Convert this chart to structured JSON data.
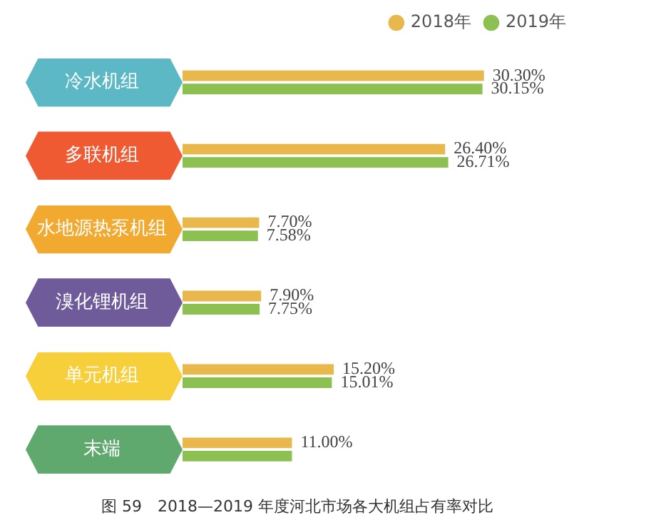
{
  "chart_data": {
    "type": "bar",
    "orientation": "horizontal",
    "title": "图 59　2018—2019 年度河北市场各大机组占有率对比",
    "categories": [
      "冷水机组",
      "多联机组",
      "水地源热泵机组",
      "溴化锂机组",
      "单元机组",
      "末端"
    ],
    "series": [
      {
        "name": "2018年",
        "color": "#e9b84c",
        "values": [
          30.3,
          26.4,
          7.7,
          7.9,
          15.2,
          11.0
        ],
        "value_labels": [
          "30.30%",
          "26.40%",
          "7.70%",
          "7.90%",
          "15.20%",
          "11.00%"
        ]
      },
      {
        "name": "2019年",
        "color": "#8cc152",
        "values": [
          30.15,
          26.71,
          7.58,
          7.75,
          15.01,
          11.0
        ],
        "value_labels": [
          "30.15%",
          "26.71%",
          "7.58%",
          "7.75%",
          "15.01%",
          null
        ]
      }
    ],
    "tick_labels": "y",
    "legend": "top right"
  }
}
